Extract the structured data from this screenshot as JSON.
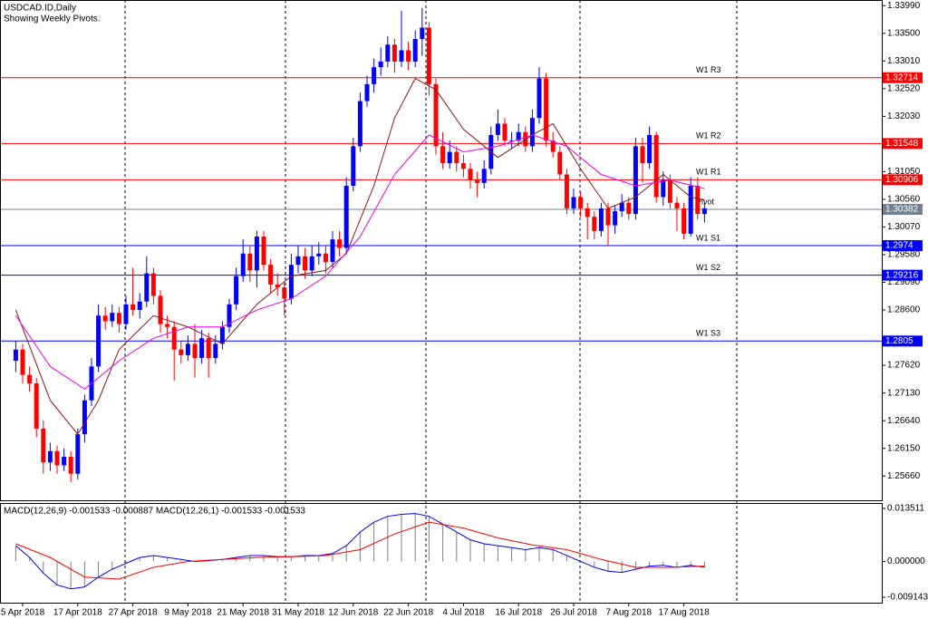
{
  "chart_data": [
    {
      "type": "candlestick",
      "title": "USDCAD.ID,Daily",
      "subtitle": "Showing Weekly Pivots.",
      "categories": [
        null,
        "5 Apr 2018",
        null,
        null,
        null,
        null,
        null,
        null,
        null,
        "17 Apr 2018",
        null,
        null,
        null,
        null,
        null,
        null,
        null,
        "27 Apr 2018",
        null,
        null,
        null,
        null,
        null,
        null,
        null,
        "9 May 2018",
        null,
        null,
        null,
        null,
        null,
        null,
        null,
        "21 May 2018",
        null,
        null,
        null,
        null,
        null,
        null,
        null,
        "31 May 2018",
        null,
        null,
        null,
        null,
        null,
        null,
        null,
        "12 Jun 2018",
        null,
        null,
        null,
        null,
        null,
        null,
        null,
        "22 Jun 2018",
        null,
        null,
        null,
        null,
        null,
        null,
        null,
        "4 Jul 2018",
        null,
        null,
        null,
        null,
        null,
        null,
        null,
        "16 Jul 2018",
        null,
        null,
        null,
        null,
        null,
        null,
        null,
        "26 Jul 2018",
        null,
        null,
        null,
        null,
        null,
        null,
        null,
        "7 Aug 2018",
        null,
        null,
        null,
        null,
        null,
        null,
        null,
        "17 Aug 2018",
        null,
        null,
        null
      ],
      "ohlc": [
        [
          1.277,
          1.2805,
          1.275,
          1.279
        ],
        [
          1.279,
          1.28,
          1.273,
          1.2745
        ],
        [
          1.2745,
          1.276,
          1.2715,
          1.273
        ],
        [
          1.273,
          1.274,
          1.2635,
          1.265
        ],
        [
          1.265,
          1.2665,
          1.257,
          1.259
        ],
        [
          1.259,
          1.2625,
          1.2575,
          1.261
        ],
        [
          1.261,
          1.262,
          1.257,
          1.2585
        ],
        [
          1.2585,
          1.2615,
          1.2575,
          1.26
        ],
        [
          1.26,
          1.261,
          1.2555,
          1.257
        ],
        [
          1.257,
          1.265,
          1.256,
          1.264
        ],
        [
          1.264,
          1.271,
          1.2625,
          1.27
        ],
        [
          1.27,
          1.2775,
          1.269,
          1.276
        ],
        [
          1.276,
          1.287,
          1.275,
          1.285
        ],
        [
          1.285,
          1.2865,
          1.2825,
          1.284
        ],
        [
          1.284,
          1.287,
          1.283,
          1.2855
        ],
        [
          1.2855,
          1.2865,
          1.282,
          1.2835
        ],
        [
          1.2835,
          1.2885,
          1.2825,
          1.287
        ],
        [
          1.287,
          1.2935,
          1.285,
          1.286
        ],
        [
          1.286,
          1.289,
          1.2845,
          1.2875
        ],
        [
          1.2875,
          1.2955,
          1.2865,
          1.2925
        ],
        [
          1.2925,
          1.2935,
          1.287,
          1.2885
        ],
        [
          1.2885,
          1.2895,
          1.282,
          1.2835
        ],
        [
          1.2835,
          1.285,
          1.281,
          1.283
        ],
        [
          1.283,
          1.284,
          1.2735,
          1.279
        ],
        [
          1.279,
          1.2805,
          1.2765,
          1.278
        ],
        [
          1.278,
          1.2815,
          1.277,
          1.28
        ],
        [
          1.28,
          1.2835,
          1.274,
          1.2775
        ],
        [
          1.2775,
          1.2825,
          1.2765,
          1.281
        ],
        [
          1.281,
          1.282,
          1.274,
          1.2775
        ],
        [
          1.2775,
          1.2815,
          1.2765,
          1.28
        ],
        [
          1.28,
          1.284,
          1.279,
          1.283
        ],
        [
          1.283,
          1.288,
          1.282,
          1.287
        ],
        [
          1.287,
          1.2935,
          1.286,
          1.292
        ],
        [
          1.292,
          1.2985,
          1.291,
          1.296
        ],
        [
          1.296,
          1.2975,
          1.291,
          1.293
        ],
        [
          1.293,
          1.3,
          1.29,
          1.299
        ],
        [
          1.299,
          1.3,
          1.293,
          1.294
        ],
        [
          1.294,
          1.295,
          1.289,
          1.2905
        ],
        [
          1.2905,
          1.2925,
          1.2885,
          1.29
        ],
        [
          1.29,
          1.291,
          1.285,
          1.288
        ],
        [
          1.288,
          1.296,
          1.287,
          1.294
        ],
        [
          1.294,
          1.2975,
          1.2925,
          1.2955
        ],
        [
          1.2955,
          1.297,
          1.2915,
          1.293
        ],
        [
          1.293,
          1.2975,
          1.292,
          1.2955
        ],
        [
          1.2955,
          1.298,
          1.294,
          1.296
        ],
        [
          1.296,
          1.2975,
          1.2925,
          1.2945
        ],
        [
          1.2945,
          1.3,
          1.2935,
          1.2985
        ],
        [
          1.2985,
          1.3,
          1.2955,
          1.297
        ],
        [
          1.297,
          1.3095,
          1.296,
          1.308
        ],
        [
          1.308,
          1.3165,
          1.307,
          1.315
        ],
        [
          1.315,
          1.3245,
          1.314,
          1.323
        ],
        [
          1.323,
          1.3275,
          1.322,
          1.326
        ],
        [
          1.326,
          1.3305,
          1.3245,
          1.329
        ],
        [
          1.329,
          1.3325,
          1.3275,
          1.33
        ],
        [
          1.33,
          1.3345,
          1.329,
          1.333
        ],
        [
          1.333,
          1.334,
          1.328,
          1.33
        ],
        [
          1.33,
          1.339,
          1.329,
          1.332
        ],
        [
          1.332,
          1.3335,
          1.3285,
          1.33
        ],
        [
          1.33,
          1.3355,
          1.329,
          1.334
        ],
        [
          1.334,
          1.3395,
          1.331,
          1.336
        ],
        [
          1.336,
          1.337,
          1.324,
          1.326
        ],
        [
          1.326,
          1.327,
          1.3135,
          1.315
        ],
        [
          1.315,
          1.3175,
          1.311,
          1.312
        ],
        [
          1.312,
          1.316,
          1.311,
          1.314
        ],
        [
          1.314,
          1.315,
          1.3105,
          1.312
        ],
        [
          1.312,
          1.3135,
          1.3095,
          1.311
        ],
        [
          1.311,
          1.312,
          1.3075,
          1.309
        ],
        [
          1.309,
          1.3105,
          1.306,
          1.3085
        ],
        [
          1.3085,
          1.3125,
          1.3075,
          1.311
        ],
        [
          1.311,
          1.3185,
          1.31,
          1.317
        ],
        [
          1.317,
          1.3215,
          1.316,
          1.319
        ],
        [
          1.319,
          1.32,
          1.315,
          1.316
        ],
        [
          1.316,
          1.3175,
          1.3145,
          1.316
        ],
        [
          1.316,
          1.319,
          1.315,
          1.3175
        ],
        [
          1.3175,
          1.3185,
          1.314,
          1.315
        ],
        [
          1.315,
          1.3215,
          1.314,
          1.32
        ],
        [
          1.32,
          1.329,
          1.319,
          1.327
        ],
        [
          1.327,
          1.328,
          1.315,
          1.316
        ],
        [
          1.316,
          1.3175,
          1.313,
          1.314
        ],
        [
          1.314,
          1.315,
          1.309,
          1.31
        ],
        [
          1.31,
          1.311,
          1.303,
          1.304
        ],
        [
          1.304,
          1.3075,
          1.303,
          1.306
        ],
        [
          1.306,
          1.307,
          1.3025,
          1.304
        ],
        [
          1.304,
          1.305,
          1.2985,
          1.3025
        ],
        [
          1.3025,
          1.3035,
          1.2985,
          1.3
        ],
        [
          1.3,
          1.305,
          1.299,
          1.304
        ],
        [
          1.304,
          1.305,
          1.2975,
          1.301
        ],
        [
          1.301,
          1.3045,
          1.2995,
          1.3035
        ],
        [
          1.3035,
          1.3065,
          1.3025,
          1.305
        ],
        [
          1.305,
          1.306,
          1.302,
          1.303
        ],
        [
          1.303,
          1.3165,
          1.302,
          1.315
        ],
        [
          1.315,
          1.3165,
          1.3085,
          1.312
        ],
        [
          1.312,
          1.3185,
          1.311,
          1.317
        ],
        [
          1.317,
          1.3175,
          1.305,
          1.306
        ],
        [
          1.306,
          1.3105,
          1.3045,
          1.309
        ],
        [
          1.309,
          1.31,
          1.304,
          1.305
        ],
        [
          1.305,
          1.306,
          1.3,
          1.304
        ],
        [
          1.304,
          1.305,
          1.2985,
          1.2995
        ],
        [
          1.2995,
          1.3095,
          1.299,
          1.308
        ],
        [
          1.308,
          1.3095,
          1.302,
          1.303
        ],
        [
          1.303,
          1.305,
          1.3015,
          1.304
        ]
      ],
      "up_color": "#0000ff",
      "down_color": "#ff0000",
      "lines": [
        {
          "color": "#8b1a1a",
          "x": [
            0,
            5,
            9,
            12,
            15,
            20,
            25,
            30,
            35,
            40,
            45,
            48,
            52,
            55,
            58,
            61,
            65,
            70,
            75,
            78,
            82,
            86,
            90,
            94,
            98,
            100
          ],
          "values": [
            1.286,
            1.27,
            1.264,
            1.27,
            1.279,
            1.285,
            1.283,
            1.28,
            1.287,
            1.292,
            1.293,
            1.296,
            1.308,
            1.32,
            1.327,
            1.325,
            1.318,
            1.313,
            1.317,
            1.319,
            1.311,
            1.304,
            1.306,
            1.31,
            1.306,
            1.3055
          ]
        },
        {
          "color": "#ee00ee",
          "x": [
            0,
            5,
            10,
            15,
            20,
            25,
            30,
            35,
            40,
            45,
            50,
            55,
            60,
            65,
            70,
            75,
            80,
            85,
            90,
            95,
            100
          ],
          "values": [
            1.285,
            1.276,
            1.272,
            1.277,
            1.281,
            1.283,
            1.283,
            1.286,
            1.288,
            1.292,
            1.299,
            1.31,
            1.317,
            1.314,
            1.315,
            1.317,
            1.315,
            1.31,
            1.308,
            1.309,
            1.3075
          ]
        }
      ],
      "pivots": [
        {
          "name": "W1 R3",
          "value": 1.32714,
          "color": "#ff0000"
        },
        {
          "name": "W1 R2",
          "value": 1.31548,
          "color": "#ff0000"
        },
        {
          "name": "W1 R1",
          "value": 1.30906,
          "color": "#ff0000"
        },
        {
          "name": "Pivot",
          "value": 1.30382,
          "color": "#708090"
        },
        {
          "name": "W1 S1",
          "value": 1.2974,
          "color": "#0000ff"
        },
        {
          "name": "W1 S2",
          "value": 1.29216,
          "color": "#0000ff"
        },
        {
          "name": "W1 S3",
          "value": 1.2805,
          "color": "#0000ff"
        }
      ],
      "ylim": [
        1.2523,
        1.3409
      ],
      "yticks": [
        {
          "value": 1.3399,
          "label": "1.33990"
        },
        {
          "value": 1.335,
          "label": "1.33500"
        },
        {
          "value": 1.3301,
          "label": "1.33010"
        },
        {
          "value": 1.3252,
          "label": "1.32520"
        },
        {
          "value": 1.3203,
          "label": "1.32030"
        },
        {
          "value": 1.3105,
          "label": "1.31050"
        },
        {
          "value": 1.3056,
          "label": "1.30560"
        },
        {
          "value": 1.3007,
          "label": "1.30070"
        },
        {
          "value": 1.2958,
          "label": "1.29580"
        },
        {
          "value": 1.2909,
          "label": "1.29090"
        },
        {
          "value": 1.286,
          "label": "1.28600"
        },
        {
          "value": 1.2762,
          "label": "1.27620"
        },
        {
          "value": 1.2713,
          "label": "1.27130"
        },
        {
          "value": 1.2664,
          "label": "1.26640"
        },
        {
          "value": 1.2615,
          "label": "1.26150"
        },
        {
          "value": 1.2566,
          "label": "1.25660"
        }
      ]
    },
    {
      "type": "macd",
      "title": "MACD(12,26,9) -0.001533 -0.000887 MACD(12,26,1) -0.001533 -0.001533",
      "histogram": {
        "color": "#808080",
        "line_color": "#0000ff",
        "x": [
          0,
          2,
          4,
          6,
          8,
          10,
          12,
          14,
          16,
          18,
          20,
          22,
          24,
          26,
          28,
          30,
          32,
          34,
          36,
          38,
          40,
          42,
          44,
          46,
          48,
          50,
          52,
          54,
          56,
          58,
          60,
          62,
          64,
          66,
          68,
          70,
          72,
          74,
          76,
          78,
          80,
          82,
          84,
          86,
          88,
          90,
          92,
          94,
          96,
          98,
          100
        ],
        "values": [
          0.004,
          0.001,
          -0.003,
          -0.006,
          -0.007,
          -0.0065,
          -0.004,
          -0.002,
          -0.0005,
          0.001,
          0.0015,
          0.001,
          0.0005,
          0.0,
          0.0002,
          0.0005,
          0.001,
          0.0015,
          0.0015,
          0.0012,
          0.0012,
          0.0015,
          0.0015,
          0.002,
          0.004,
          0.0075,
          0.01,
          0.0115,
          0.012,
          0.0122,
          0.0115,
          0.0095,
          0.0075,
          0.0055,
          0.0045,
          0.004,
          0.0035,
          0.003,
          0.0035,
          0.003,
          0.0015,
          0.0,
          -0.0015,
          -0.0025,
          -0.0028,
          -0.002,
          -0.0012,
          -0.001,
          -0.0015,
          -0.001,
          -0.0015
        ]
      },
      "signal": {
        "color": "#ff0000",
        "x": [
          0,
          5,
          10,
          15,
          20,
          25,
          30,
          35,
          40,
          45,
          50,
          55,
          60,
          65,
          70,
          75,
          80,
          85,
          90,
          95,
          100
        ],
        "values": [
          0.0045,
          0.001,
          -0.004,
          -0.0045,
          -0.0015,
          0.0,
          0.0005,
          0.001,
          0.0012,
          0.0015,
          0.003,
          0.007,
          0.01,
          0.0085,
          0.006,
          0.0042,
          0.003,
          0.0005,
          -0.0015,
          -0.0015,
          -0.0012
        ]
      },
      "ylim": [
        -0.01052,
        0.01489
      ],
      "yticks": [
        0.013511,
        {
          "value": 0,
          "label": "0.000000"
        },
        -0.009143
      ]
    }
  ]
}
